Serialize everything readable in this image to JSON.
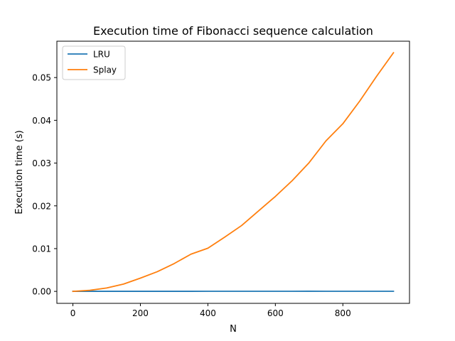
{
  "chart_data": {
    "type": "line",
    "title": "Execution time of Fibonacci sequence calculation",
    "xlabel": "N",
    "ylabel": "Execution time (s)",
    "xlim": [
      -47.5,
      997.5
    ],
    "ylim": [
      -0.0028,
      0.0585
    ],
    "xticks": [
      0,
      200,
      400,
      600,
      800
    ],
    "yticks": [
      0.0,
      0.01,
      0.02,
      0.03,
      0.04,
      0.05
    ],
    "xtick_labels": [
      "0",
      "200",
      "400",
      "600",
      "800"
    ],
    "ytick_labels": [
      "0.00",
      "0.01",
      "0.02",
      "0.03",
      "0.04",
      "0.05"
    ],
    "grid": false,
    "legend_position": "upper-left",
    "x": [
      0,
      50,
      100,
      150,
      200,
      250,
      300,
      350,
      400,
      450,
      500,
      550,
      600,
      650,
      700,
      750,
      800,
      850,
      900,
      950
    ],
    "series": [
      {
        "name": "LRU",
        "color": "#1f77b4",
        "values": [
          1e-05,
          1e-05,
          1e-05,
          1e-05,
          1e-05,
          1e-05,
          1e-05,
          1e-05,
          2e-05,
          2e-05,
          2e-05,
          2e-05,
          2e-05,
          2e-05,
          3e-05,
          2e-05,
          2e-05,
          2e-05,
          2e-05,
          2e-05
        ]
      },
      {
        "name": "Splay",
        "color": "#ff7f0e",
        "values": [
          0.0,
          0.00025,
          0.0008,
          0.0017,
          0.0031,
          0.0046,
          0.0065,
          0.0087,
          0.0101,
          0.0127,
          0.0154,
          0.0188,
          0.0222,
          0.0259,
          0.0301,
          0.0352,
          0.0392,
          0.0445,
          0.0503,
          0.0558
        ]
      }
    ]
  }
}
